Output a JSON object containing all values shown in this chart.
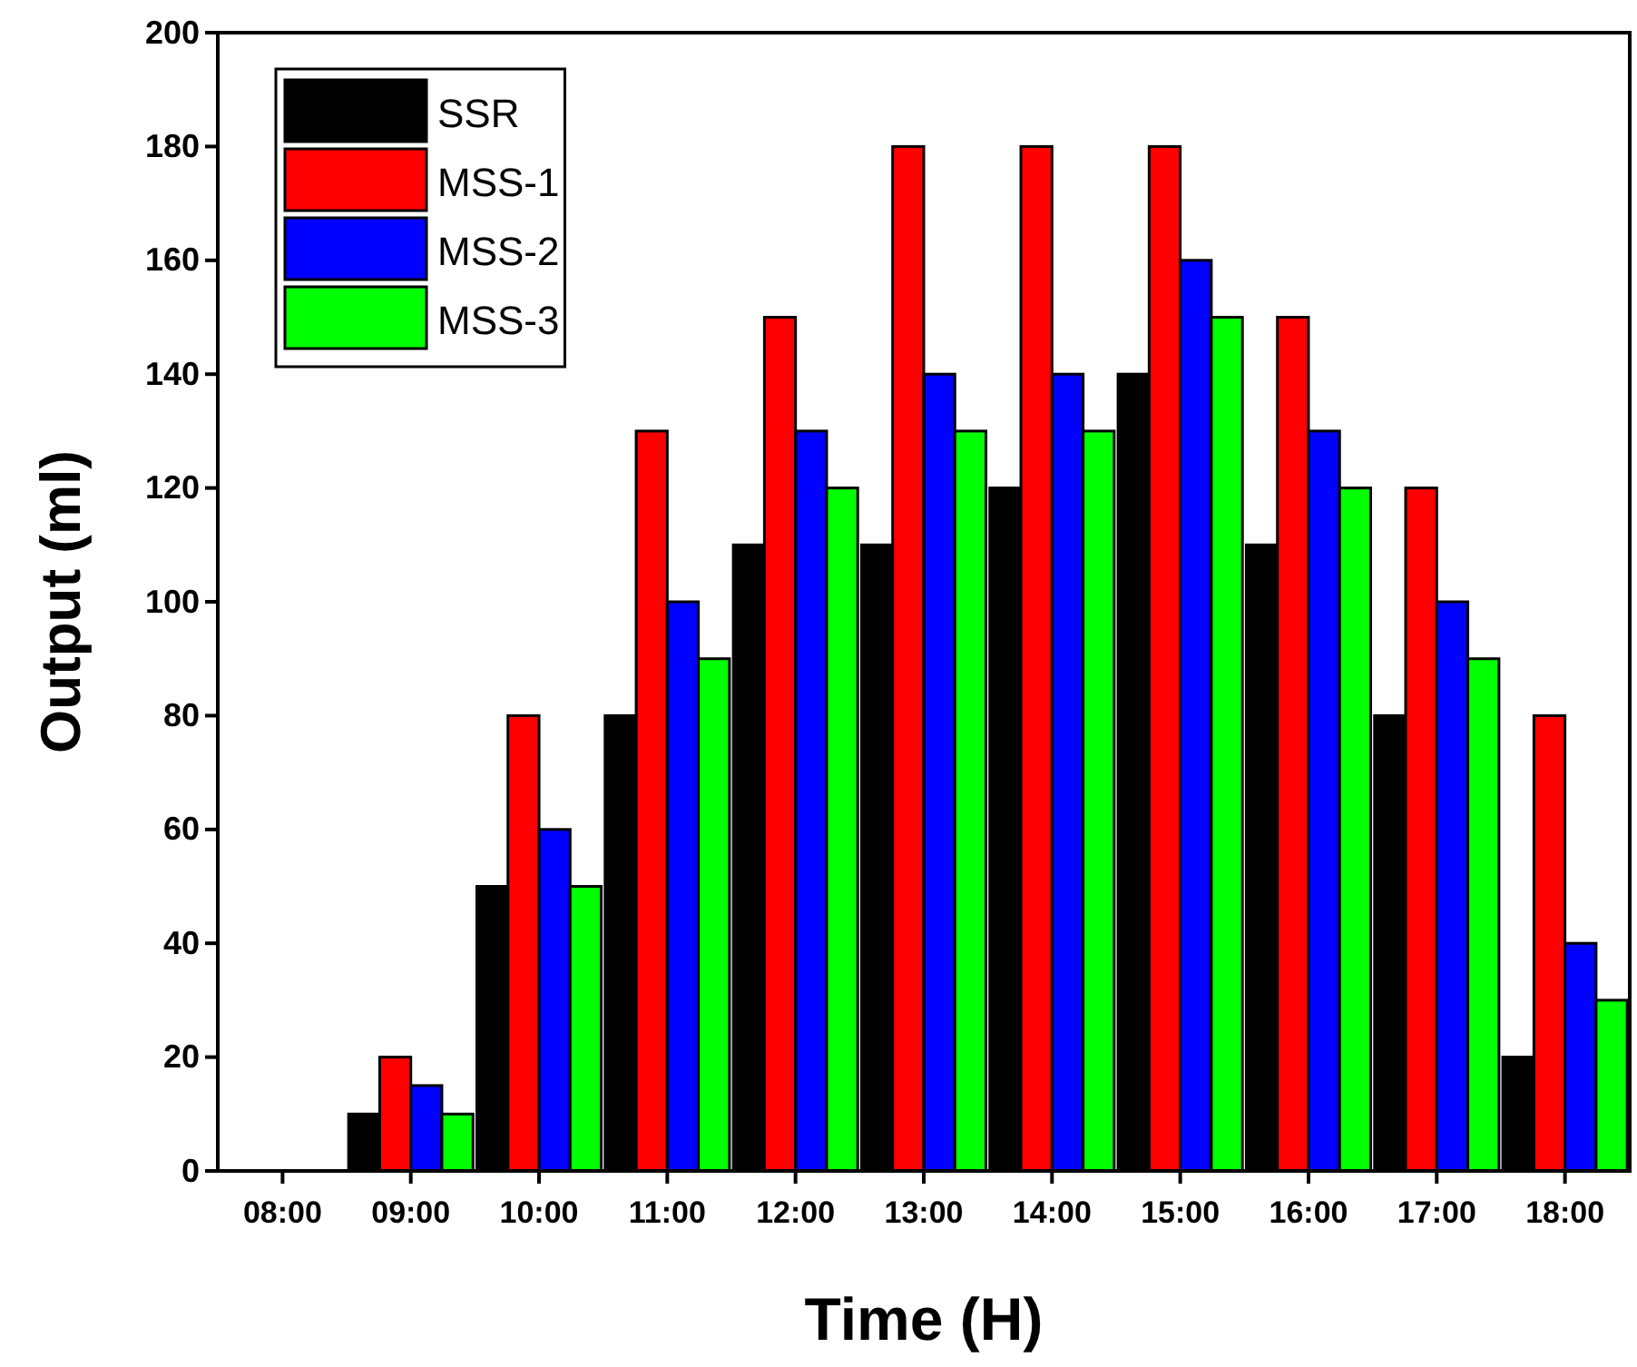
{
  "chart_data": {
    "type": "bar",
    "xlabel": "Time (H)",
    "ylabel": "Output (ml)",
    "categories": [
      "08:00",
      "09:00",
      "10:00",
      "11:00",
      "12:00",
      "13:00",
      "14:00",
      "15:00",
      "16:00",
      "17:00",
      "18:00"
    ],
    "series": [
      {
        "name": "SSR",
        "color": "#000000",
        "values": [
          0,
          10,
          50,
          80,
          110,
          110,
          120,
          140,
          110,
          80,
          20
        ]
      },
      {
        "name": "MSS-1",
        "color": "#ff0000",
        "values": [
          0,
          20,
          80,
          130,
          150,
          180,
          180,
          180,
          150,
          120,
          80
        ]
      },
      {
        "name": "MSS-2",
        "color": "#0000ff",
        "values": [
          0,
          15,
          60,
          100,
          130,
          140,
          140,
          160,
          130,
          100,
          40
        ]
      },
      {
        "name": "MSS-3",
        "color": "#00ff00",
        "values": [
          0,
          10,
          50,
          90,
          120,
          130,
          130,
          150,
          120,
          90,
          30
        ]
      }
    ],
    "ylim": [
      0,
      200
    ],
    "yticks": [
      0,
      20,
      40,
      60,
      80,
      100,
      120,
      140,
      160,
      180,
      200
    ],
    "grid": false,
    "legend": "top left"
  }
}
